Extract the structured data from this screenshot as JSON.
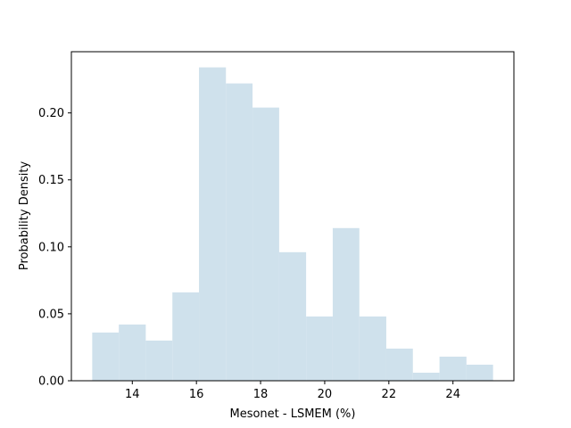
{
  "chart_data": {
    "type": "bar",
    "subtype": "histogram",
    "xlabel": "Mesonet - LSMEM (%)",
    "ylabel": "Probability Density",
    "bar_color": "#cfe1ec",
    "bin_edges": [
      12.75,
      13.58,
      14.42,
      15.25,
      16.08,
      16.92,
      17.75,
      18.58,
      19.42,
      20.25,
      21.08,
      21.92,
      22.75,
      23.58,
      24.42,
      25.25
    ],
    "density": [
      0.036,
      0.042,
      0.03,
      0.066,
      0.234,
      0.222,
      0.204,
      0.096,
      0.048,
      0.114,
      0.048,
      0.024,
      0.006,
      0.018,
      0.012
    ],
    "xlim": [
      12.1,
      25.9
    ],
    "ylim": [
      0.0,
      0.2457
    ],
    "x_ticks": [
      14,
      16,
      18,
      20,
      22,
      24
    ],
    "x_tick_labels": [
      "14",
      "16",
      "18",
      "20",
      "22",
      "24"
    ],
    "y_ticks": [
      0.0,
      0.05,
      0.1,
      0.15,
      0.2
    ],
    "y_tick_labels": [
      "0.00",
      "0.05",
      "0.10",
      "0.15",
      "0.20"
    ],
    "grid": false,
    "legend": false
  }
}
